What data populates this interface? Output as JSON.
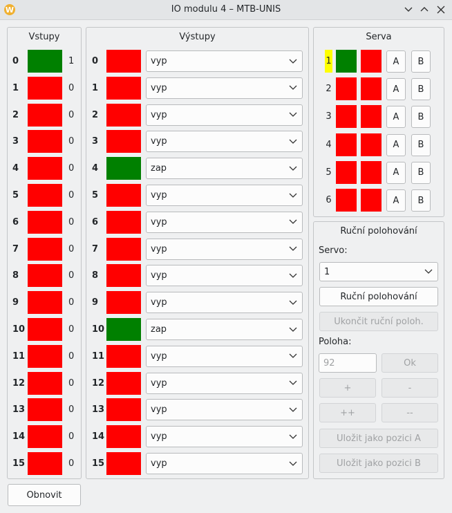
{
  "window": {
    "title": "IO modulu 4 – MTB-UNIS"
  },
  "colors": {
    "on": "#008000",
    "off": "#ff0000",
    "highlight": "#ffff00"
  },
  "inputs": {
    "title": "Vstupy",
    "rows": [
      {
        "index": 0,
        "value": 1
      },
      {
        "index": 1,
        "value": 0
      },
      {
        "index": 2,
        "value": 0
      },
      {
        "index": 3,
        "value": 0
      },
      {
        "index": 4,
        "value": 0
      },
      {
        "index": 5,
        "value": 0
      },
      {
        "index": 6,
        "value": 0
      },
      {
        "index": 7,
        "value": 0
      },
      {
        "index": 8,
        "value": 0
      },
      {
        "index": 9,
        "value": 0
      },
      {
        "index": 10,
        "value": 0
      },
      {
        "index": 11,
        "value": 0
      },
      {
        "index": 12,
        "value": 0
      },
      {
        "index": 13,
        "value": 0
      },
      {
        "index": 14,
        "value": 0
      },
      {
        "index": 15,
        "value": 0
      }
    ]
  },
  "outputs": {
    "title": "Výstupy",
    "on_state": "zap",
    "rows": [
      {
        "index": 0,
        "state": "vyp"
      },
      {
        "index": 1,
        "state": "vyp"
      },
      {
        "index": 2,
        "state": "vyp"
      },
      {
        "index": 3,
        "state": "vyp"
      },
      {
        "index": 4,
        "state": "zap"
      },
      {
        "index": 5,
        "state": "vyp"
      },
      {
        "index": 6,
        "state": "vyp"
      },
      {
        "index": 7,
        "state": "vyp"
      },
      {
        "index": 8,
        "state": "vyp"
      },
      {
        "index": 9,
        "state": "vyp"
      },
      {
        "index": 10,
        "state": "zap"
      },
      {
        "index": 11,
        "state": "vyp"
      },
      {
        "index": 12,
        "state": "vyp"
      },
      {
        "index": 13,
        "state": "vyp"
      },
      {
        "index": 14,
        "state": "vyp"
      },
      {
        "index": 15,
        "state": "vyp"
      }
    ]
  },
  "servos": {
    "title": "Serva",
    "buttons": [
      "A",
      "B"
    ],
    "rows": [
      {
        "index": 1,
        "highlighted": true,
        "states": [
          "on",
          "off"
        ]
      },
      {
        "index": 2,
        "highlighted": false,
        "states": [
          "off",
          "off"
        ]
      },
      {
        "index": 3,
        "highlighted": false,
        "states": [
          "off",
          "off"
        ]
      },
      {
        "index": 4,
        "highlighted": false,
        "states": [
          "off",
          "off"
        ]
      },
      {
        "index": 5,
        "highlighted": false,
        "states": [
          "off",
          "off"
        ]
      },
      {
        "index": 6,
        "highlighted": false,
        "states": [
          "off",
          "off"
        ]
      }
    ]
  },
  "manual": {
    "title": "Ruční polohování",
    "servo_label": "Servo:",
    "servo_select": 1,
    "start_button": "Ruční polohování",
    "stop_button": "Ukončit ruční poloh.",
    "position_label": "Poloha:",
    "position_value": 92,
    "ok_button": "Ok",
    "plus_button": "+",
    "minus_button": "-",
    "plusplus_button": "++",
    "minusminus_button": "--",
    "save_a_button": "Uložit jako pozici A",
    "save_b_button": "Uložit jako pozici B"
  },
  "refresh_button": "Obnovit"
}
